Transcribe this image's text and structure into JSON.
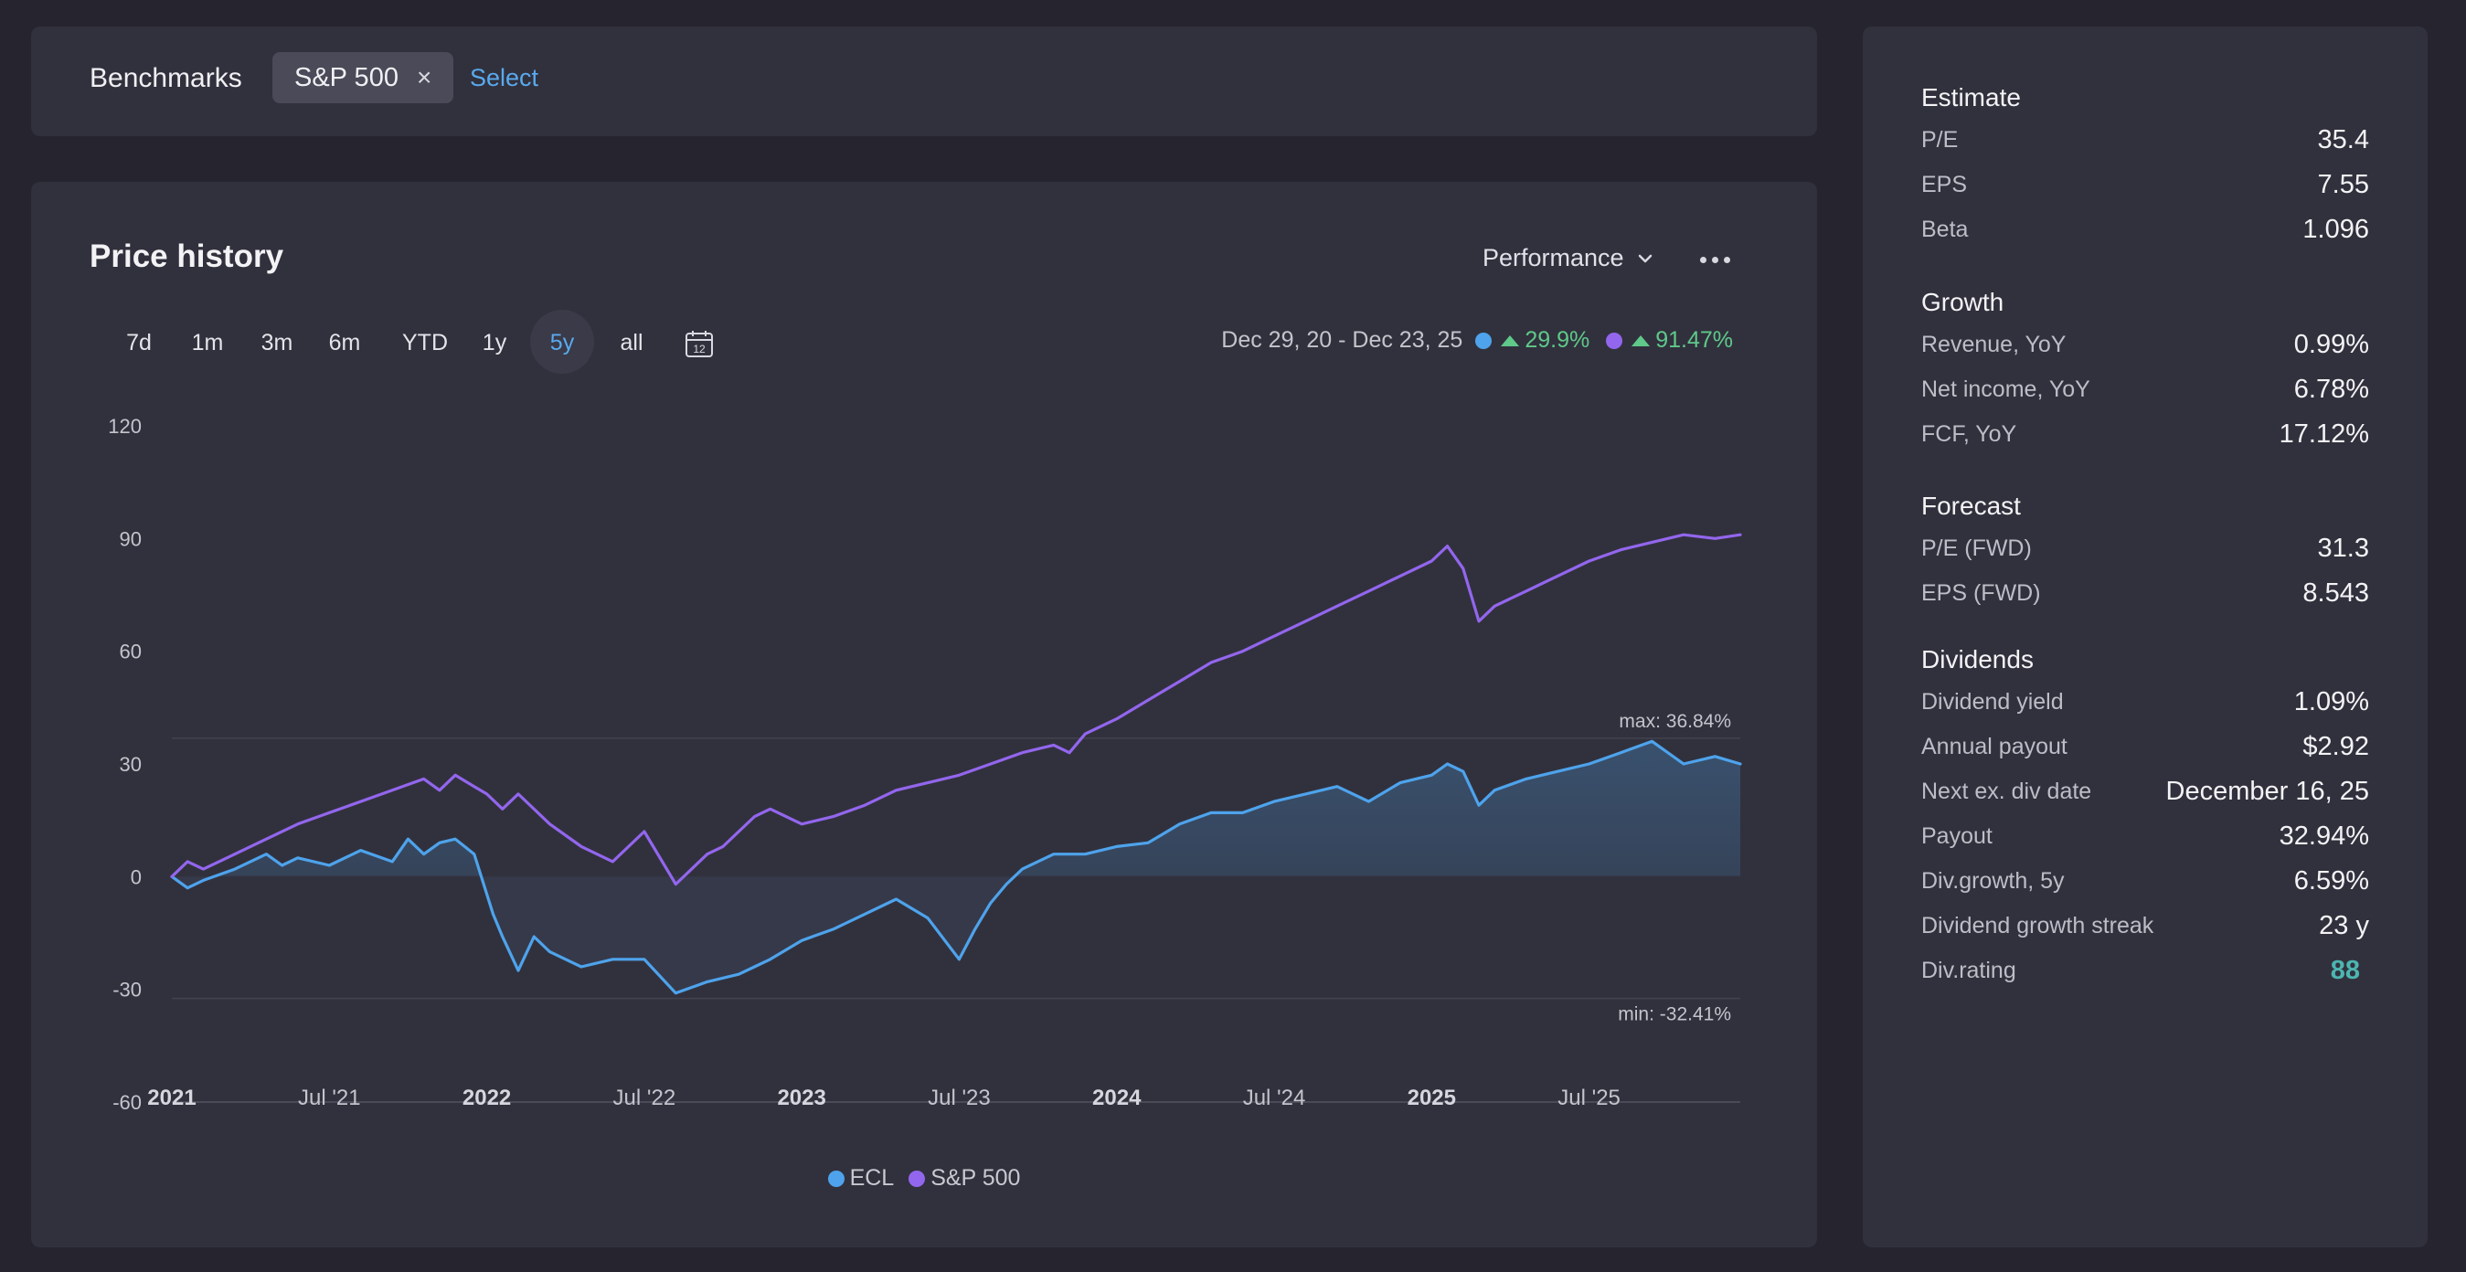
{
  "benchmarks": {
    "label": "Benchmarks",
    "chip": "S&P 500",
    "chip_close": "×",
    "select_label": "Select"
  },
  "price_history": {
    "title": "Price history",
    "mode": "Performance",
    "ranges": [
      "7d",
      "1m",
      "3m",
      "6m",
      "YTD",
      "1y",
      "5y",
      "all"
    ],
    "active_range": "5y",
    "date_range": "Dec 29, 20 - Dec 23, 25",
    "ecl_change": "29.9%",
    "sp500_change": "91.47%",
    "max_label": "max: 36.84%",
    "min_label": "min: -32.41%",
    "legend": [
      "ECL",
      "S&P 500"
    ],
    "calendar_day": "12"
  },
  "colors": {
    "ecl": "#4ea3ec",
    "sp500": "#9366ee",
    "gain": "#5fc98a",
    "accent": "#5aa9ee",
    "rating": "#4db5b0"
  },
  "icons": [
    "close-icon",
    "chevron-down-icon",
    "more-icon",
    "calendar-icon",
    "up-triangle-icon"
  ],
  "chart_data": {
    "type": "line",
    "yticks": [
      "120",
      "90",
      "60",
      "30",
      "0",
      "-30",
      "-60"
    ],
    "ylim": [
      -60,
      120
    ],
    "xticks": [
      {
        "label": "2021",
        "t": 0.0,
        "bold": true
      },
      {
        "label": "Jul '21",
        "t": 0.5,
        "bold": false
      },
      {
        "label": "2022",
        "t": 1.0,
        "bold": true
      },
      {
        "label": "Jul '22",
        "t": 1.5,
        "bold": false
      },
      {
        "label": "2023",
        "t": 2.0,
        "bold": true
      },
      {
        "label": "Jul '23",
        "t": 2.5,
        "bold": false
      },
      {
        "label": "2024",
        "t": 3.0,
        "bold": true
      },
      {
        "label": "Jul '24",
        "t": 3.5,
        "bold": false
      },
      {
        "label": "2025",
        "t": 4.0,
        "bold": true
      },
      {
        "label": "Jul '25",
        "t": 4.5,
        "bold": false
      }
    ],
    "xlim_years": [
      0,
      4.98
    ],
    "max": 36.84,
    "min": -32.41,
    "series": [
      {
        "name": "ECL",
        "t": [
          0,
          0.05,
          0.1,
          0.2,
          0.3,
          0.35,
          0.4,
          0.5,
          0.6,
          0.7,
          0.75,
          0.8,
          0.85,
          0.9,
          0.96,
          1.02,
          1.05,
          1.1,
          1.15,
          1.2,
          1.3,
          1.4,
          1.5,
          1.6,
          1.7,
          1.75,
          1.8,
          1.85,
          1.9,
          2.0,
          2.1,
          2.2,
          2.3,
          2.4,
          2.5,
          2.55,
          2.6,
          2.65,
          2.7,
          2.8,
          2.9,
          2.95,
          3.0,
          3.1,
          3.2,
          3.3,
          3.4,
          3.5,
          3.6,
          3.7,
          3.8,
          3.9,
          4.0,
          4.05,
          4.1,
          4.15,
          4.2,
          4.3,
          4.4,
          4.5,
          4.6,
          4.7,
          4.8,
          4.9,
          4.98
        ],
        "values": [
          0,
          -3,
          -1,
          2,
          6,
          3,
          5,
          3,
          7,
          4,
          10,
          6,
          9,
          10,
          6,
          -10,
          -16,
          -25,
          -16,
          -20,
          -24,
          -22,
          -22,
          -31,
          -28,
          -27,
          -26,
          -24,
          -22,
          -17,
          -14,
          -10,
          -6,
          -11,
          -22,
          -14,
          -7,
          -2,
          2,
          6,
          6,
          7,
          8,
          9,
          14,
          17,
          17,
          20,
          22,
          24,
          20,
          25,
          27,
          30,
          28,
          19,
          23,
          26,
          28,
          30,
          33,
          36,
          30,
          32,
          30
        ]
      },
      {
        "name": "S&P 500",
        "t": [
          0,
          0.05,
          0.1,
          0.2,
          0.3,
          0.4,
          0.5,
          0.6,
          0.7,
          0.8,
          0.85,
          0.9,
          0.96,
          1.0,
          1.05,
          1.1,
          1.2,
          1.3,
          1.4,
          1.5,
          1.6,
          1.7,
          1.75,
          1.8,
          1.85,
          1.9,
          2.0,
          2.1,
          2.2,
          2.3,
          2.4,
          2.5,
          2.6,
          2.7,
          2.8,
          2.85,
          2.9,
          3.0,
          3.1,
          3.2,
          3.3,
          3.4,
          3.5,
          3.6,
          3.7,
          3.8,
          3.9,
          4.0,
          4.05,
          4.1,
          4.15,
          4.2,
          4.3,
          4.4,
          4.5,
          4.6,
          4.7,
          4.8,
          4.9,
          4.98
        ],
        "values": [
          0,
          4,
          2,
          6,
          10,
          14,
          17,
          20,
          23,
          26,
          23,
          27,
          24,
          22,
          18,
          22,
          14,
          8,
          4,
          12,
          -2,
          6,
          8,
          12,
          16,
          18,
          14,
          16,
          19,
          23,
          25,
          27,
          30,
          33,
          35,
          33,
          38,
          42,
          47,
          52,
          57,
          60,
          64,
          68,
          72,
          76,
          80,
          84,
          88,
          82,
          68,
          72,
          76,
          80,
          84,
          87,
          89,
          91,
          90,
          91
        ]
      }
    ]
  },
  "sidebar": {
    "sections": [
      {
        "title": "Estimate",
        "rows": [
          {
            "k": "P/E",
            "v": "35.4"
          },
          {
            "k": "EPS",
            "v": "7.55"
          },
          {
            "k": "Beta",
            "v": "1.096"
          }
        ]
      },
      {
        "title": "Growth",
        "rows": [
          {
            "k": "Revenue, YoY",
            "v": "0.99%"
          },
          {
            "k": "Net income, YoY",
            "v": "6.78%"
          },
          {
            "k": "FCF, YoY",
            "v": "17.12%"
          }
        ]
      },
      {
        "title": "Forecast",
        "rows": [
          {
            "k": "P/E (FWD)",
            "v": "31.3"
          },
          {
            "k": "EPS (FWD)",
            "v": "8.543"
          }
        ]
      },
      {
        "title": "Dividends",
        "rows": [
          {
            "k": "Dividend yield",
            "v": "1.09%"
          },
          {
            "k": "Annual payout",
            "v": "$2.92"
          },
          {
            "k": "Next ex. div date",
            "v": "December 16, 25"
          },
          {
            "k": "Payout",
            "v": "32.94%"
          },
          {
            "k": "Div.growth, 5y",
            "v": "6.59%"
          },
          {
            "k": "Dividend growth streak",
            "v": "23 y"
          },
          {
            "k": "Div.rating",
            "v": "88"
          }
        ]
      }
    ]
  }
}
